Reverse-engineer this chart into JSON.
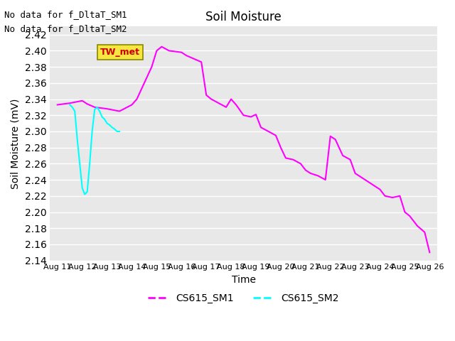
{
  "title": "Soil Moisture",
  "xlabel": "Time",
  "ylabel": "Soil Moisture (mV)",
  "ylim": [
    2.14,
    2.43
  ],
  "bg_color": "#e8e8e8",
  "fig_bg_color": "#ffffff",
  "no_data_text": [
    "No data for f_DltaT_SM1",
    "No data for f_DltaT_SM2"
  ],
  "tw_met_label": "TW_met",
  "tw_met_box_color": "#f5e642",
  "tw_met_text_color": "#cc0000",
  "grid_color": "#ffffff",
  "sm1_color": "#ff00ff",
  "sm2_color": "#00ffff",
  "xtick_labels": [
    "Aug 11",
    "Aug 12",
    "Aug 13",
    "Aug 14",
    "Aug 15",
    "Aug 16",
    "Aug 17",
    "Aug 18",
    "Aug 19",
    "Aug 20",
    "Aug 21",
    "Aug 22",
    "Aug 23",
    "Aug 24",
    "Aug 25",
    "Aug 26"
  ],
  "ytick_values": [
    2.14,
    2.16,
    2.18,
    2.2,
    2.22,
    2.24,
    2.26,
    2.28,
    2.3,
    2.32,
    2.34,
    2.36,
    2.38,
    2.4,
    2.42
  ],
  "sm1_x": [
    0,
    0.5,
    1,
    1.2,
    1.5,
    2,
    2.5,
    3,
    3.2,
    3.5,
    3.8,
    4,
    4.2,
    4.5,
    5,
    5.2,
    5.5,
    5.8,
    6,
    6.2,
    6.5,
    6.8,
    7,
    7.2,
    7.5,
    7.8,
    8,
    8.2,
    8.5,
    8.8,
    9,
    9.2,
    9.5,
    9.8,
    10,
    10.2,
    10.5,
    10.8,
    11,
    11.2,
    11.5,
    11.8,
    12,
    12.2,
    12.5,
    12.8,
    13,
    13.2,
    13.5,
    13.8,
    14,
    14.2,
    14.5,
    14.8,
    15
  ],
  "sm1_y": [
    2.333,
    2.335,
    2.338,
    2.334,
    2.33,
    2.328,
    2.325,
    2.333,
    2.34,
    2.36,
    2.38,
    2.4,
    2.405,
    2.4,
    2.398,
    2.394,
    2.39,
    2.386,
    2.345,
    2.34,
    2.335,
    2.33,
    2.34,
    2.333,
    2.32,
    2.318,
    2.321,
    2.305,
    2.3,
    2.295,
    2.28,
    2.267,
    2.265,
    2.26,
    2.252,
    2.248,
    2.245,
    2.24,
    2.294,
    2.29,
    2.27,
    2.265,
    2.248,
    2.244,
    2.238,
    2.232,
    2.228,
    2.22,
    2.218,
    2.22,
    2.2,
    2.195,
    2.183,
    2.175,
    2.15
  ],
  "sm2_x": [
    0.5,
    0.6,
    0.7,
    0.8,
    0.9,
    1.0,
    1.1,
    1.2,
    1.3,
    1.4,
    1.5,
    1.6,
    1.7,
    1.8,
    1.9,
    2.0,
    2.1,
    2.2,
    2.3,
    2.4,
    2.5
  ],
  "sm2_y": [
    2.333,
    2.33,
    2.325,
    2.29,
    2.26,
    2.23,
    2.222,
    2.225,
    2.26,
    2.3,
    2.327,
    2.33,
    2.325,
    2.318,
    2.315,
    2.31,
    2.308,
    2.305,
    2.303,
    2.3,
    2.3
  ]
}
